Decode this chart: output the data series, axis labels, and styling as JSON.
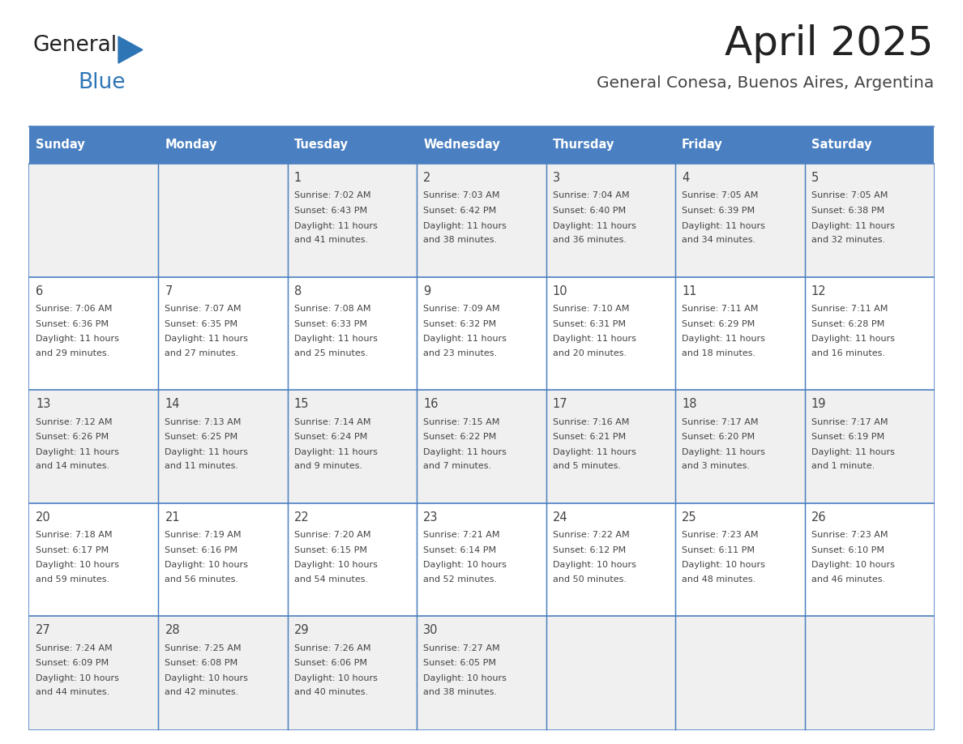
{
  "title": "April 2025",
  "subtitle": "General Conesa, Buenos Aires, Argentina",
  "days_of_week": [
    "Sunday",
    "Monday",
    "Tuesday",
    "Wednesday",
    "Thursday",
    "Friday",
    "Saturday"
  ],
  "header_bg": "#4a7fc1",
  "header_text_color": "#ffffff",
  "cell_bg_odd": "#f0f0f0",
  "cell_bg_even": "#ffffff",
  "border_color": "#4a7fc1",
  "text_color": "#444444",
  "title_color": "#222222",
  "subtitle_color": "#444444",
  "logo_general_color": "#222222",
  "logo_blue_color": "#2e75b6",
  "weeks": [
    [
      {
        "day": "",
        "sunrise": "",
        "sunset": "",
        "daylight": ""
      },
      {
        "day": "",
        "sunrise": "",
        "sunset": "",
        "daylight": ""
      },
      {
        "day": "1",
        "sunrise": "Sunrise: 7:02 AM",
        "sunset": "Sunset: 6:43 PM",
        "daylight": "Daylight: 11 hours\nand 41 minutes."
      },
      {
        "day": "2",
        "sunrise": "Sunrise: 7:03 AM",
        "sunset": "Sunset: 6:42 PM",
        "daylight": "Daylight: 11 hours\nand 38 minutes."
      },
      {
        "day": "3",
        "sunrise": "Sunrise: 7:04 AM",
        "sunset": "Sunset: 6:40 PM",
        "daylight": "Daylight: 11 hours\nand 36 minutes."
      },
      {
        "day": "4",
        "sunrise": "Sunrise: 7:05 AM",
        "sunset": "Sunset: 6:39 PM",
        "daylight": "Daylight: 11 hours\nand 34 minutes."
      },
      {
        "day": "5",
        "sunrise": "Sunrise: 7:05 AM",
        "sunset": "Sunset: 6:38 PM",
        "daylight": "Daylight: 11 hours\nand 32 minutes."
      }
    ],
    [
      {
        "day": "6",
        "sunrise": "Sunrise: 7:06 AM",
        "sunset": "Sunset: 6:36 PM",
        "daylight": "Daylight: 11 hours\nand 29 minutes."
      },
      {
        "day": "7",
        "sunrise": "Sunrise: 7:07 AM",
        "sunset": "Sunset: 6:35 PM",
        "daylight": "Daylight: 11 hours\nand 27 minutes."
      },
      {
        "day": "8",
        "sunrise": "Sunrise: 7:08 AM",
        "sunset": "Sunset: 6:33 PM",
        "daylight": "Daylight: 11 hours\nand 25 minutes."
      },
      {
        "day": "9",
        "sunrise": "Sunrise: 7:09 AM",
        "sunset": "Sunset: 6:32 PM",
        "daylight": "Daylight: 11 hours\nand 23 minutes."
      },
      {
        "day": "10",
        "sunrise": "Sunrise: 7:10 AM",
        "sunset": "Sunset: 6:31 PM",
        "daylight": "Daylight: 11 hours\nand 20 minutes."
      },
      {
        "day": "11",
        "sunrise": "Sunrise: 7:11 AM",
        "sunset": "Sunset: 6:29 PM",
        "daylight": "Daylight: 11 hours\nand 18 minutes."
      },
      {
        "day": "12",
        "sunrise": "Sunrise: 7:11 AM",
        "sunset": "Sunset: 6:28 PM",
        "daylight": "Daylight: 11 hours\nand 16 minutes."
      }
    ],
    [
      {
        "day": "13",
        "sunrise": "Sunrise: 7:12 AM",
        "sunset": "Sunset: 6:26 PM",
        "daylight": "Daylight: 11 hours\nand 14 minutes."
      },
      {
        "day": "14",
        "sunrise": "Sunrise: 7:13 AM",
        "sunset": "Sunset: 6:25 PM",
        "daylight": "Daylight: 11 hours\nand 11 minutes."
      },
      {
        "day": "15",
        "sunrise": "Sunrise: 7:14 AM",
        "sunset": "Sunset: 6:24 PM",
        "daylight": "Daylight: 11 hours\nand 9 minutes."
      },
      {
        "day": "16",
        "sunrise": "Sunrise: 7:15 AM",
        "sunset": "Sunset: 6:22 PM",
        "daylight": "Daylight: 11 hours\nand 7 minutes."
      },
      {
        "day": "17",
        "sunrise": "Sunrise: 7:16 AM",
        "sunset": "Sunset: 6:21 PM",
        "daylight": "Daylight: 11 hours\nand 5 minutes."
      },
      {
        "day": "18",
        "sunrise": "Sunrise: 7:17 AM",
        "sunset": "Sunset: 6:20 PM",
        "daylight": "Daylight: 11 hours\nand 3 minutes."
      },
      {
        "day": "19",
        "sunrise": "Sunrise: 7:17 AM",
        "sunset": "Sunset: 6:19 PM",
        "daylight": "Daylight: 11 hours\nand 1 minute."
      }
    ],
    [
      {
        "day": "20",
        "sunrise": "Sunrise: 7:18 AM",
        "sunset": "Sunset: 6:17 PM",
        "daylight": "Daylight: 10 hours\nand 59 minutes."
      },
      {
        "day": "21",
        "sunrise": "Sunrise: 7:19 AM",
        "sunset": "Sunset: 6:16 PM",
        "daylight": "Daylight: 10 hours\nand 56 minutes."
      },
      {
        "day": "22",
        "sunrise": "Sunrise: 7:20 AM",
        "sunset": "Sunset: 6:15 PM",
        "daylight": "Daylight: 10 hours\nand 54 minutes."
      },
      {
        "day": "23",
        "sunrise": "Sunrise: 7:21 AM",
        "sunset": "Sunset: 6:14 PM",
        "daylight": "Daylight: 10 hours\nand 52 minutes."
      },
      {
        "day": "24",
        "sunrise": "Sunrise: 7:22 AM",
        "sunset": "Sunset: 6:12 PM",
        "daylight": "Daylight: 10 hours\nand 50 minutes."
      },
      {
        "day": "25",
        "sunrise": "Sunrise: 7:23 AM",
        "sunset": "Sunset: 6:11 PM",
        "daylight": "Daylight: 10 hours\nand 48 minutes."
      },
      {
        "day": "26",
        "sunrise": "Sunrise: 7:23 AM",
        "sunset": "Sunset: 6:10 PM",
        "daylight": "Daylight: 10 hours\nand 46 minutes."
      }
    ],
    [
      {
        "day": "27",
        "sunrise": "Sunrise: 7:24 AM",
        "sunset": "Sunset: 6:09 PM",
        "daylight": "Daylight: 10 hours\nand 44 minutes."
      },
      {
        "day": "28",
        "sunrise": "Sunrise: 7:25 AM",
        "sunset": "Sunset: 6:08 PM",
        "daylight": "Daylight: 10 hours\nand 42 minutes."
      },
      {
        "day": "29",
        "sunrise": "Sunrise: 7:26 AM",
        "sunset": "Sunset: 6:06 PM",
        "daylight": "Daylight: 10 hours\nand 40 minutes."
      },
      {
        "day": "30",
        "sunrise": "Sunrise: 7:27 AM",
        "sunset": "Sunset: 6:05 PM",
        "daylight": "Daylight: 10 hours\nand 38 minutes."
      },
      {
        "day": "",
        "sunrise": "",
        "sunset": "",
        "daylight": ""
      },
      {
        "day": "",
        "sunrise": "",
        "sunset": "",
        "daylight": ""
      },
      {
        "day": "",
        "sunrise": "",
        "sunset": "",
        "daylight": ""
      }
    ]
  ]
}
